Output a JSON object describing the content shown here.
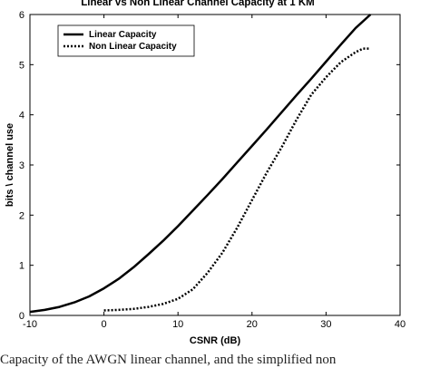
{
  "caption": "Capacity of the AWGN linear channel, and the simplified non",
  "chart_data": {
    "type": "line",
    "title": "Linear vs Non Linear Channel Capacity at 1 KM",
    "xlabel": "CSNR (dB)",
    "ylabel": "bits \\ channel use",
    "xlim": [
      -10,
      40
    ],
    "ylim": [
      0,
      6
    ],
    "xticks": [
      "-10",
      "0",
      "10",
      "20",
      "30",
      "40"
    ],
    "yticks": [
      "0",
      "1",
      "2",
      "3",
      "4",
      "5",
      "6"
    ],
    "grid": false,
    "legend_position": "top-left",
    "series": [
      {
        "name": "Linear Capacity",
        "style": "solid",
        "color": "#000000",
        "x": [
          -10,
          -8,
          -6,
          -4,
          -2,
          0,
          2,
          4,
          6,
          8,
          10,
          12,
          14,
          16,
          18,
          20,
          22,
          24,
          26,
          28,
          30,
          32,
          34,
          36
        ],
        "y": [
          0.07,
          0.11,
          0.17,
          0.26,
          0.38,
          0.54,
          0.73,
          0.96,
          1.22,
          1.49,
          1.78,
          2.09,
          2.4,
          2.72,
          3.05,
          3.38,
          3.71,
          4.05,
          4.39,
          4.72,
          5.06,
          5.4,
          5.73,
          6.0
        ]
      },
      {
        "name": "Non Linear Capacity",
        "style": "dotted",
        "color": "#000000",
        "x": [
          0,
          2,
          4,
          6,
          8,
          10,
          12,
          14,
          16,
          18,
          20,
          22,
          24,
          26,
          28,
          30,
          32,
          34,
          35,
          36
        ],
        "y": [
          0.1,
          0.11,
          0.13,
          0.17,
          0.23,
          0.33,
          0.52,
          0.85,
          1.25,
          1.75,
          2.3,
          2.85,
          3.35,
          3.9,
          4.4,
          4.75,
          5.05,
          5.25,
          5.32,
          5.32
        ]
      }
    ]
  }
}
